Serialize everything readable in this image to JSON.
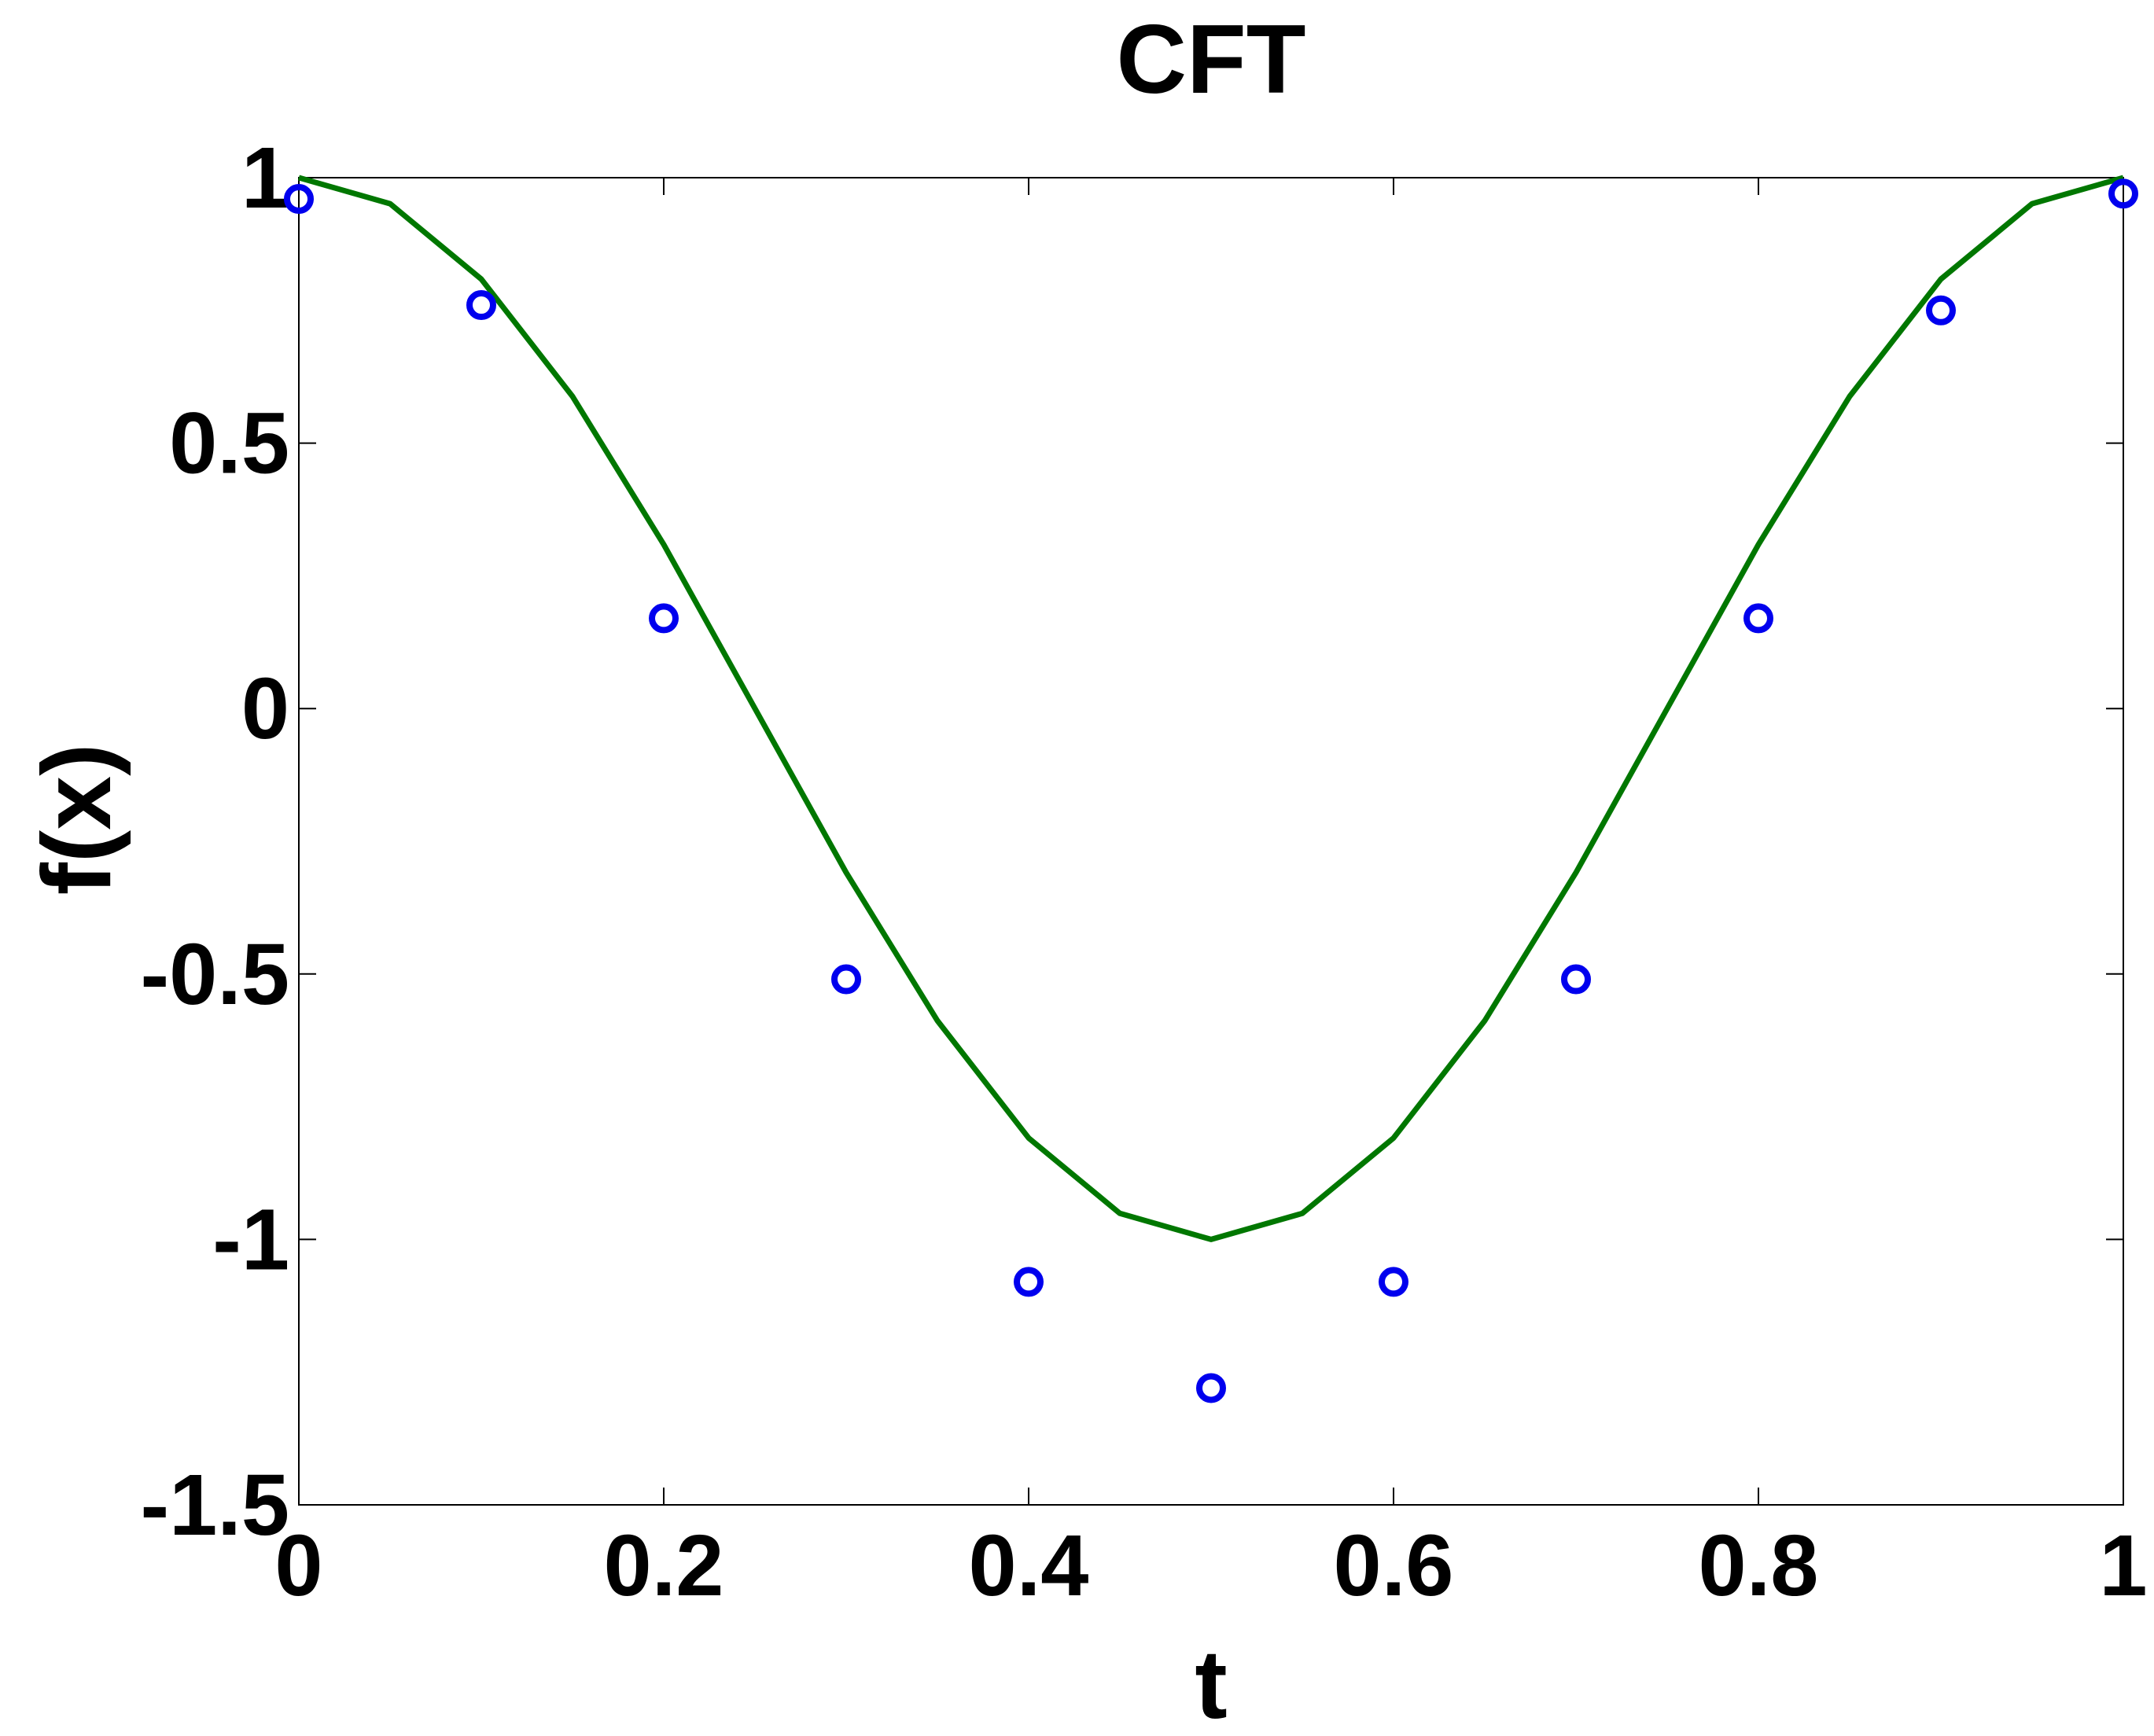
{
  "chart_data": {
    "type": "line",
    "title": "CFT",
    "xlabel": "t",
    "ylabel": "f(x)",
    "xlim": [
      0,
      1
    ],
    "ylim": [
      -1.5,
      1
    ],
    "xticks": [
      0,
      0.2,
      0.4,
      0.6,
      0.8,
      1
    ],
    "xtick_labels": [
      "0",
      "0.2",
      "0.4",
      "0.6",
      "0.8",
      "1"
    ],
    "yticks": [
      -1.5,
      -1,
      -0.5,
      0,
      0.5,
      1
    ],
    "ytick_labels": [
      "-1.5",
      "-1",
      "-0.5",
      "0",
      "0.5",
      "1"
    ],
    "grid": false,
    "legend": false,
    "series": [
      {
        "type": "line",
        "color": "#007700",
        "function": "cos(2*pi*t)",
        "x": [
          0,
          0.05,
          0.1,
          0.15,
          0.2,
          0.25,
          0.3,
          0.35,
          0.4,
          0.45,
          0.5,
          0.55,
          0.6,
          0.65,
          0.7,
          0.75,
          0.8,
          0.85,
          0.9,
          0.95,
          1
        ],
        "y": [
          1,
          0.951,
          0.809,
          0.588,
          0.309,
          0,
          -0.309,
          -0.588,
          -0.809,
          -0.951,
          -1,
          -0.951,
          -0.809,
          -0.588,
          -0.309,
          0,
          0.309,
          0.588,
          0.809,
          0.951,
          1
        ]
      },
      {
        "type": "scatter",
        "marker": "circle",
        "color": "#0000ee",
        "x": [
          0,
          0.1,
          0.2,
          0.3,
          0.4,
          0.5,
          0.6,
          0.7,
          0.8,
          0.9,
          1
        ],
        "y": [
          0.96,
          0.76,
          0.17,
          -0.51,
          -1.08,
          -1.28,
          -1.08,
          -0.51,
          0.17,
          0.75,
          0.97
        ]
      }
    ]
  }
}
